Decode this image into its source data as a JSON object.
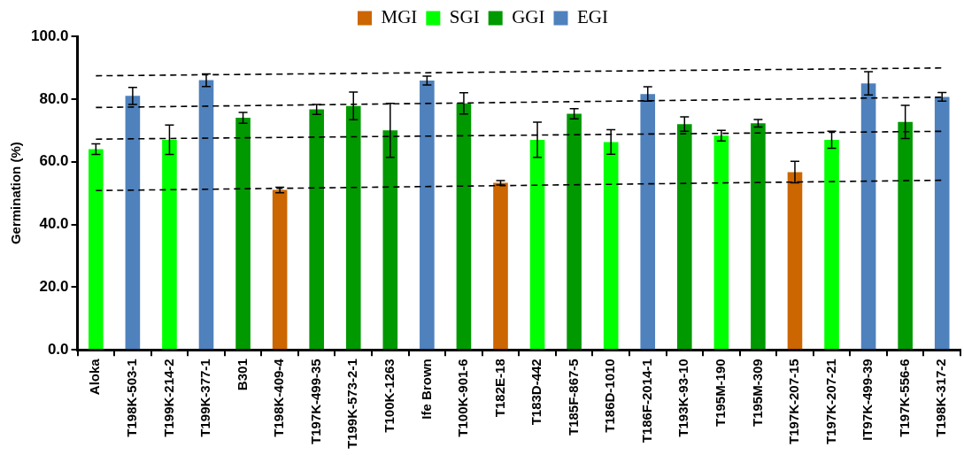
{
  "chart_data": {
    "type": "bar",
    "ylabel": "Germination (%)",
    "categories": [
      "Aloka",
      "T198K-503-1",
      "T199K-214-2",
      "T199K-377-1",
      "B301",
      "T198K-409-4",
      "T197K-499-35",
      "T199K-573-2-1",
      "T100K-1263",
      "Ife Brown",
      "T100K-901-6",
      "T182E-18",
      "T183D-442",
      "T185F-867-5",
      "T186D-1010",
      "T186F-2014-1",
      "T193K-93-10",
      "T195M-190",
      "T195M-309",
      "T197K-207-15",
      "T197K-207-21",
      "IT97K-499-39",
      "T197K-556-6",
      "T198K-317-2"
    ],
    "series": [
      {
        "name": "MGI",
        "color": "#cc6600",
        "values": [
          null,
          null,
          null,
          null,
          null,
          51.0,
          null,
          null,
          null,
          null,
          null,
          53.3,
          null,
          null,
          null,
          null,
          null,
          null,
          null,
          56.7,
          null,
          null,
          null,
          null
        ],
        "errors": [
          null,
          null,
          null,
          null,
          null,
          0.9,
          null,
          null,
          null,
          null,
          null,
          0.7,
          null,
          null,
          null,
          null,
          null,
          null,
          null,
          3.4,
          null,
          null,
          null,
          null
        ]
      },
      {
        "name": "SGI",
        "color": "#00ff00",
        "values": [
          64.0,
          null,
          67.0,
          null,
          null,
          null,
          null,
          null,
          null,
          null,
          null,
          null,
          67.0,
          null,
          66.3,
          null,
          null,
          68.3,
          null,
          null,
          67.0,
          null,
          null,
          null
        ],
        "errors": [
          1.7,
          null,
          4.7,
          null,
          null,
          null,
          null,
          null,
          null,
          null,
          null,
          null,
          5.6,
          null,
          3.9,
          null,
          null,
          1.7,
          null,
          null,
          2.7,
          null,
          null,
          null
        ]
      },
      {
        "name": "GGI",
        "color": "#009900",
        "values": [
          null,
          null,
          null,
          null,
          74.0,
          null,
          76.7,
          77.8,
          70.0,
          null,
          78.6,
          null,
          null,
          75.3,
          null,
          null,
          72.0,
          null,
          72.3,
          null,
          null,
          null,
          72.7,
          null
        ],
        "errors": [
          null,
          null,
          null,
          null,
          1.7,
          null,
          1.6,
          4.4,
          8.6,
          null,
          3.4,
          null,
          null,
          1.6,
          null,
          null,
          2.3,
          null,
          1.2,
          null,
          null,
          null,
          5.3,
          null
        ]
      },
      {
        "name": "EGI",
        "color": "#4f81bd",
        "values": [
          null,
          81.0,
          null,
          86.0,
          null,
          null,
          null,
          null,
          null,
          85.9,
          null,
          null,
          null,
          null,
          null,
          81.6,
          null,
          null,
          null,
          null,
          null,
          85.0,
          null,
          80.7
        ],
        "errors": [
          null,
          2.7,
          null,
          2.0,
          null,
          null,
          null,
          null,
          null,
          1.4,
          null,
          null,
          null,
          null,
          null,
          2.3,
          null,
          null,
          null,
          null,
          null,
          3.7,
          null,
          1.4
        ]
      },
      {
        "type": "line",
        "color": "#000000",
        "line_style": "dashed",
        "x": [
          "Aloka",
          "T198K-317-2"
        ],
        "values": [
          87.4,
          89.9
        ]
      },
      {
        "type": "line",
        "color": "#000000",
        "line_style": "dashed",
        "x": [
          "Aloka",
          "T198K-317-2"
        ],
        "values": [
          77.3,
          80.6
        ]
      },
      {
        "type": "line",
        "color": "#000000",
        "line_style": "dashed",
        "x": [
          "Aloka",
          "T198K-317-2"
        ],
        "values": [
          67.2,
          69.7
        ]
      },
      {
        "type": "line",
        "color": "#000000",
        "line_style": "dashed",
        "x": [
          "Aloka",
          "T198K-317-2"
        ],
        "values": [
          50.8,
          54.1
        ]
      }
    ],
    "ylim": [
      0,
      100
    ],
    "yticks": [
      {
        "value": 0,
        "label": "0.0"
      },
      {
        "value": 20,
        "label": "20.0"
      },
      {
        "value": 40,
        "label": "40.0"
      },
      {
        "value": 60,
        "label": "60.0"
      },
      {
        "value": 80,
        "label": "80.0"
      },
      {
        "value": 100,
        "label": "100.0"
      }
    ],
    "grid": false,
    "legend": "top"
  }
}
